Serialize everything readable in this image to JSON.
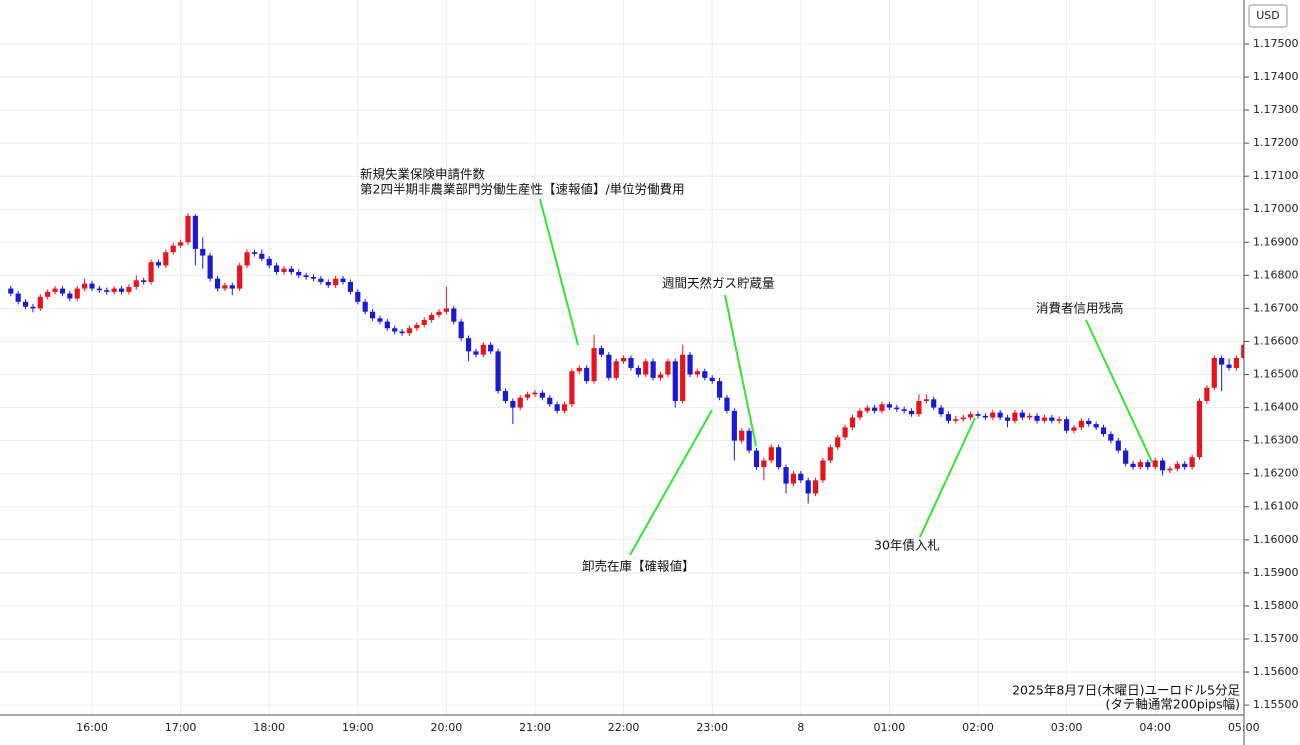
{
  "chart_data": {
    "type": "candlestick",
    "currency": "USD",
    "footnote": [
      "2025年8月7日(木曜日)ユーロドル5分足",
      "(タテ軸通常200pips幅)"
    ],
    "up_color": "#e8141d",
    "down_color": "#1a1ad6",
    "grid": true,
    "ylim": [
      1.1547,
      1.17633
    ],
    "yticks": [
      {
        "value": 1.175,
        "label": "1.17500"
      },
      {
        "value": 1.174,
        "label": "1.17400"
      },
      {
        "value": 1.173,
        "label": "1.17300"
      },
      {
        "value": 1.172,
        "label": "1.17200"
      },
      {
        "value": 1.171,
        "label": "1.17100"
      },
      {
        "value": 1.17,
        "label": "1.17000"
      },
      {
        "value": 1.169,
        "label": "1.16900"
      },
      {
        "value": 1.168,
        "label": "1.16800"
      },
      {
        "value": 1.167,
        "label": "1.16700"
      },
      {
        "value": 1.166,
        "label": "1.16600"
      },
      {
        "value": 1.165,
        "label": "1.16500"
      },
      {
        "value": 1.164,
        "label": "1.16400"
      },
      {
        "value": 1.163,
        "label": "1.16300"
      },
      {
        "value": 1.162,
        "label": "1.16200"
      },
      {
        "value": 1.161,
        "label": "1.16100"
      },
      {
        "value": 1.16,
        "label": "1.16000"
      },
      {
        "value": 1.159,
        "label": "1.15900"
      },
      {
        "value": 1.158,
        "label": "1.15800"
      },
      {
        "value": 1.157,
        "label": "1.15700"
      },
      {
        "value": 1.156,
        "label": "1.15600"
      },
      {
        "value": 1.155,
        "label": "1.15500"
      }
    ],
    "categories": [
      null,
      null,
      null,
      null,
      null,
      null,
      null,
      null,
      null,
      null,
      null,
      "16:00",
      null,
      null,
      null,
      null,
      null,
      null,
      null,
      null,
      null,
      null,
      null,
      "17:00",
      null,
      null,
      null,
      null,
      null,
      null,
      null,
      null,
      null,
      null,
      null,
      "18:00",
      null,
      null,
      null,
      null,
      null,
      null,
      null,
      null,
      null,
      null,
      null,
      "19:00",
      null,
      null,
      null,
      null,
      null,
      null,
      null,
      null,
      null,
      null,
      null,
      "20:00",
      null,
      null,
      null,
      null,
      null,
      null,
      null,
      null,
      null,
      null,
      null,
      "21:00",
      null,
      null,
      null,
      null,
      null,
      null,
      null,
      null,
      null,
      null,
      null,
      "22:00",
      null,
      null,
      null,
      null,
      null,
      null,
      null,
      null,
      null,
      null,
      null,
      "23:00",
      null,
      null,
      null,
      null,
      null,
      null,
      null,
      null,
      null,
      null,
      null,
      "8",
      null,
      null,
      null,
      null,
      null,
      null,
      null,
      null,
      null,
      null,
      null,
      "01:00",
      null,
      null,
      null,
      null,
      null,
      null,
      null,
      null,
      null,
      null,
      null,
      "02:00",
      null,
      null,
      null,
      null,
      null,
      null,
      null,
      null,
      null,
      null,
      null,
      "03:00",
      null,
      null,
      null,
      null,
      null,
      null,
      null,
      null,
      null,
      null,
      null,
      "04:00",
      null,
      null,
      null,
      null,
      null,
      null,
      null,
      null,
      null,
      null,
      null,
      "05:00"
    ],
    "ohlc": [
      [
        1.1676,
        1.16768,
        1.16737,
        1.16745
      ],
      [
        1.16745,
        1.16753,
        1.16712,
        1.1672
      ],
      [
        1.1672,
        1.16728,
        1.16697,
        1.16705
      ],
      [
        1.16705,
        1.16713,
        1.16688,
        1.167
      ],
      [
        1.167,
        1.16743,
        1.16692,
        1.16735
      ],
      [
        1.16735,
        1.16758,
        1.16727,
        1.1675
      ],
      [
        1.1675,
        1.16768,
        1.16742,
        1.1676
      ],
      [
        1.1676,
        1.16768,
        1.16737,
        1.16745
      ],
      [
        1.16745,
        1.16753,
        1.16722,
        1.1673
      ],
      [
        1.1673,
        1.16768,
        1.16722,
        1.1676
      ],
      [
        1.1676,
        1.1679,
        1.16752,
        1.16775
      ],
      [
        1.16775,
        1.16783,
        1.16752,
        1.1676
      ],
      [
        1.1676,
        1.16768,
        1.16747,
        1.16755
      ],
      [
        1.16755,
        1.16763,
        1.16742,
        1.1675
      ],
      [
        1.1675,
        1.16768,
        1.16742,
        1.1676
      ],
      [
        1.1676,
        1.16768,
        1.16742,
        1.1675
      ],
      [
        1.1675,
        1.16773,
        1.16742,
        1.16765
      ],
      [
        1.16765,
        1.168,
        1.16757,
        1.16785
      ],
      [
        1.16785,
        1.16793,
        1.16772,
        1.1678
      ],
      [
        1.1678,
        1.16848,
        1.16772,
        1.1684
      ],
      [
        1.1684,
        1.16848,
        1.16822,
        1.1683
      ],
      [
        1.1683,
        1.16878,
        1.16822,
        1.1687
      ],
      [
        1.1687,
        1.16898,
        1.16862,
        1.1689
      ],
      [
        1.1689,
        1.16908,
        1.16882,
        1.169
      ],
      [
        1.169,
        1.16988,
        1.16892,
        1.1698
      ],
      [
        1.1698,
        1.16985,
        1.1683,
        1.1688
      ],
      [
        1.1688,
        1.16915,
        1.1682,
        1.1686
      ],
      [
        1.1686,
        1.16868,
        1.16782,
        1.1679
      ],
      [
        1.1679,
        1.16798,
        1.16752,
        1.1676
      ],
      [
        1.1676,
        1.16778,
        1.16752,
        1.1677
      ],
      [
        1.1677,
        1.16778,
        1.1674,
        1.1676
      ],
      [
        1.1676,
        1.16838,
        1.16752,
        1.1683
      ],
      [
        1.1683,
        1.16878,
        1.16822,
        1.1687
      ],
      [
        1.1687,
        1.16878,
        1.16857,
        1.16865
      ],
      [
        1.16865,
        1.16878,
        1.16842,
        1.1685
      ],
      [
        1.1685,
        1.16858,
        1.16822,
        1.1683
      ],
      [
        1.1683,
        1.16838,
        1.16802,
        1.1681
      ],
      [
        1.1681,
        1.16828,
        1.16802,
        1.1682
      ],
      [
        1.1682,
        1.16828,
        1.16802,
        1.1681
      ],
      [
        1.1681,
        1.16818,
        1.16792,
        1.168
      ],
      [
        1.168,
        1.16808,
        1.16787,
        1.16795
      ],
      [
        1.16795,
        1.16803,
        1.16782,
        1.1679
      ],
      [
        1.1679,
        1.16798,
        1.16772,
        1.1678
      ],
      [
        1.1678,
        1.16788,
        1.16762,
        1.1677
      ],
      [
        1.1677,
        1.16798,
        1.16762,
        1.1679
      ],
      [
        1.1679,
        1.16798,
        1.16772,
        1.1678
      ],
      [
        1.1678,
        1.16788,
        1.16742,
        1.1675
      ],
      [
        1.1675,
        1.16758,
        1.16712,
        1.1672
      ],
      [
        1.1672,
        1.16728,
        1.16682,
        1.1669
      ],
      [
        1.1669,
        1.16698,
        1.16662,
        1.1667
      ],
      [
        1.1667,
        1.16678,
        1.16652,
        1.1666
      ],
      [
        1.1666,
        1.16668,
        1.16632,
        1.1664
      ],
      [
        1.1664,
        1.16648,
        1.16622,
        1.1663
      ],
      [
        1.1663,
        1.16638,
        1.16617,
        1.16625
      ],
      [
        1.16625,
        1.16648,
        1.16617,
        1.1664
      ],
      [
        1.1664,
        1.16658,
        1.16632,
        1.1665
      ],
      [
        1.1665,
        1.16673,
        1.16642,
        1.16665
      ],
      [
        1.16665,
        1.16688,
        1.16657,
        1.1668
      ],
      [
        1.1668,
        1.16698,
        1.16672,
        1.1669
      ],
      [
        1.1669,
        1.16765,
        1.16682,
        1.167
      ],
      [
        1.167,
        1.16708,
        1.16652,
        1.1666
      ],
      [
        1.1666,
        1.16668,
        1.16602,
        1.1661
      ],
      [
        1.1661,
        1.16618,
        1.1654,
        1.1657
      ],
      [
        1.1657,
        1.16578,
        1.16552,
        1.1656
      ],
      [
        1.1656,
        1.16598,
        1.16552,
        1.1659
      ],
      [
        1.1659,
        1.16598,
        1.16562,
        1.1657
      ],
      [
        1.1657,
        1.16578,
        1.16442,
        1.1645
      ],
      [
        1.1645,
        1.16458,
        1.16412,
        1.1642
      ],
      [
        1.1642,
        1.16428,
        1.1635,
        1.164
      ],
      [
        1.164,
        1.16438,
        1.16392,
        1.1643
      ],
      [
        1.1643,
        1.16448,
        1.16422,
        1.1644
      ],
      [
        1.1644,
        1.16453,
        1.16432,
        1.16445
      ],
      [
        1.16445,
        1.16453,
        1.16422,
        1.1643
      ],
      [
        1.1643,
        1.16438,
        1.16402,
        1.1641
      ],
      [
        1.1641,
        1.16418,
        1.16382,
        1.1639
      ],
      [
        1.1639,
        1.16418,
        1.16382,
        1.1641
      ],
      [
        1.1641,
        1.16518,
        1.16402,
        1.1651
      ],
      [
        1.1651,
        1.16528,
        1.16502,
        1.1652
      ],
      [
        1.1652,
        1.16528,
        1.16472,
        1.1648
      ],
      [
        1.1648,
        1.1662,
        1.16472,
        1.1658
      ],
      [
        1.1658,
        1.16588,
        1.16552,
        1.1656
      ],
      [
        1.1656,
        1.16568,
        1.16482,
        1.1649
      ],
      [
        1.1649,
        1.16548,
        1.16482,
        1.1654
      ],
      [
        1.1654,
        1.16558,
        1.16532,
        1.1655
      ],
      [
        1.1655,
        1.16558,
        1.16512,
        1.1652
      ],
      [
        1.1652,
        1.16528,
        1.16492,
        1.165
      ],
      [
        1.165,
        1.16548,
        1.16492,
        1.1654
      ],
      [
        1.1654,
        1.16548,
        1.16482,
        1.1649
      ],
      [
        1.1649,
        1.16508,
        1.16482,
        1.165
      ],
      [
        1.165,
        1.16548,
        1.16492,
        1.1654
      ],
      [
        1.1654,
        1.16548,
        1.164,
        1.1642
      ],
      [
        1.1642,
        1.1659,
        1.16412,
        1.1656
      ],
      [
        1.1656,
        1.16568,
        1.16492,
        1.165
      ],
      [
        1.165,
        1.16518,
        1.16492,
        1.1651
      ],
      [
        1.1651,
        1.16518,
        1.16482,
        1.1649
      ],
      [
        1.1649,
        1.16498,
        1.16472,
        1.1648
      ],
      [
        1.1648,
        1.1649,
        1.16422,
        1.1643
      ],
      [
        1.1643,
        1.16438,
        1.16382,
        1.1639
      ],
      [
        1.1639,
        1.16398,
        1.1624,
        1.163
      ],
      [
        1.163,
        1.16338,
        1.16292,
        1.1633
      ],
      [
        1.1633,
        1.16338,
        1.16262,
        1.1627
      ],
      [
        1.1627,
        1.16278,
        1.16212,
        1.1622
      ],
      [
        1.1622,
        1.16248,
        1.1618,
        1.1624
      ],
      [
        1.1624,
        1.16288,
        1.16232,
        1.1628
      ],
      [
        1.1628,
        1.16288,
        1.16212,
        1.1622
      ],
      [
        1.1622,
        1.16228,
        1.1614,
        1.1617
      ],
      [
        1.1617,
        1.16208,
        1.16162,
        1.162
      ],
      [
        1.162,
        1.16208,
        1.16172,
        1.1618
      ],
      [
        1.1618,
        1.16188,
        1.1611,
        1.1614
      ],
      [
        1.1614,
        1.16188,
        1.16132,
        1.1618
      ],
      [
        1.1618,
        1.16248,
        1.16172,
        1.1624
      ],
      [
        1.1624,
        1.16288,
        1.16232,
        1.1628
      ],
      [
        1.1628,
        1.16318,
        1.16272,
        1.1631
      ],
      [
        1.1631,
        1.16348,
        1.16302,
        1.1634
      ],
      [
        1.1634,
        1.16378,
        1.16332,
        1.1637
      ],
      [
        1.1637,
        1.16398,
        1.16362,
        1.1639
      ],
      [
        1.1639,
        1.16408,
        1.16382,
        1.164
      ],
      [
        1.164,
        1.16408,
        1.16382,
        1.1639
      ],
      [
        1.1639,
        1.16418,
        1.16382,
        1.1641
      ],
      [
        1.1641,
        1.16418,
        1.16392,
        1.164
      ],
      [
        1.164,
        1.16408,
        1.16387,
        1.16395
      ],
      [
        1.16395,
        1.16403,
        1.16382,
        1.1639
      ],
      [
        1.1639,
        1.16398,
        1.16372,
        1.1638
      ],
      [
        1.1638,
        1.1644,
        1.16372,
        1.1642
      ],
      [
        1.1642,
        1.1644,
        1.16412,
        1.16425
      ],
      [
        1.16425,
        1.16433,
        1.16392,
        1.164
      ],
      [
        1.164,
        1.16408,
        1.16372,
        1.1638
      ],
      [
        1.1638,
        1.16388,
        1.16352,
        1.1636
      ],
      [
        1.1636,
        1.16375,
        1.16352,
        1.16365
      ],
      [
        1.16365,
        1.16378,
        1.16357,
        1.1637
      ],
      [
        1.1637,
        1.16388,
        1.16362,
        1.1638
      ],
      [
        1.1638,
        1.16388,
        1.16367,
        1.16375
      ],
      [
        1.16375,
        1.16383,
        1.16362,
        1.1637
      ],
      [
        1.1637,
        1.16393,
        1.16362,
        1.16385
      ],
      [
        1.16385,
        1.16393,
        1.16362,
        1.1637
      ],
      [
        1.1637,
        1.16378,
        1.1634,
        1.1636
      ],
      [
        1.1636,
        1.16393,
        1.16352,
        1.16385
      ],
      [
        1.16385,
        1.16393,
        1.16362,
        1.1637
      ],
      [
        1.1637,
        1.16383,
        1.16362,
        1.16375
      ],
      [
        1.16375,
        1.16383,
        1.16352,
        1.1636
      ],
      [
        1.1636,
        1.16378,
        1.16352,
        1.1637
      ],
      [
        1.1637,
        1.16378,
        1.16352,
        1.1636
      ],
      [
        1.1636,
        1.16373,
        1.16352,
        1.16365
      ],
      [
        1.16365,
        1.16373,
        1.16322,
        1.1633
      ],
      [
        1.1633,
        1.16348,
        1.16322,
        1.1634
      ],
      [
        1.1634,
        1.16368,
        1.16332,
        1.1636
      ],
      [
        1.1636,
        1.16368,
        1.16342,
        1.1635
      ],
      [
        1.1635,
        1.16358,
        1.16332,
        1.1634
      ],
      [
        1.1634,
        1.16348,
        1.16312,
        1.1632
      ],
      [
        1.1632,
        1.16328,
        1.16292,
        1.163
      ],
      [
        1.163,
        1.16308,
        1.16262,
        1.1627
      ],
      [
        1.1627,
        1.16278,
        1.16222,
        1.1623
      ],
      [
        1.1623,
        1.16238,
        1.16212,
        1.1622
      ],
      [
        1.1622,
        1.16243,
        1.16212,
        1.16235
      ],
      [
        1.16235,
        1.16243,
        1.16212,
        1.1622
      ],
      [
        1.1622,
        1.16248,
        1.16212,
        1.1624
      ],
      [
        1.1624,
        1.16248,
        1.16195,
        1.1621
      ],
      [
        1.1621,
        1.16223,
        1.16202,
        1.16215
      ],
      [
        1.16215,
        1.16238,
        1.16207,
        1.1623
      ],
      [
        1.1623,
        1.16238,
        1.16212,
        1.1622
      ],
      [
        1.1622,
        1.16258,
        1.16212,
        1.1625
      ],
      [
        1.1625,
        1.16428,
        1.16242,
        1.1642
      ],
      [
        1.1642,
        1.16468,
        1.16412,
        1.1646
      ],
      [
        1.1646,
        1.16558,
        1.16452,
        1.1655
      ],
      [
        1.1655,
        1.16558,
        1.1645,
        1.1653
      ],
      [
        1.1653,
        1.16548,
        1.16512,
        1.1652
      ],
      [
        1.1652,
        1.16558,
        1.16512,
        1.1655
      ],
      [
        1.1655,
        1.166,
        1.16542,
        1.1659
      ]
    ],
    "annotations": [
      {
        "lines": [
          "新規失業保険申請件数",
          "第2四半期非農業部門労働生産性【速報値】/単位労働費用"
        ]
      },
      {
        "lines": [
          "週間天然ガス貯蔵量"
        ]
      },
      {
        "lines": [
          "消費者信用残高"
        ]
      },
      {
        "lines": [
          "卸売在庫【確報値】"
        ]
      },
      {
        "lines": [
          "30年債入札"
        ]
      }
    ]
  }
}
